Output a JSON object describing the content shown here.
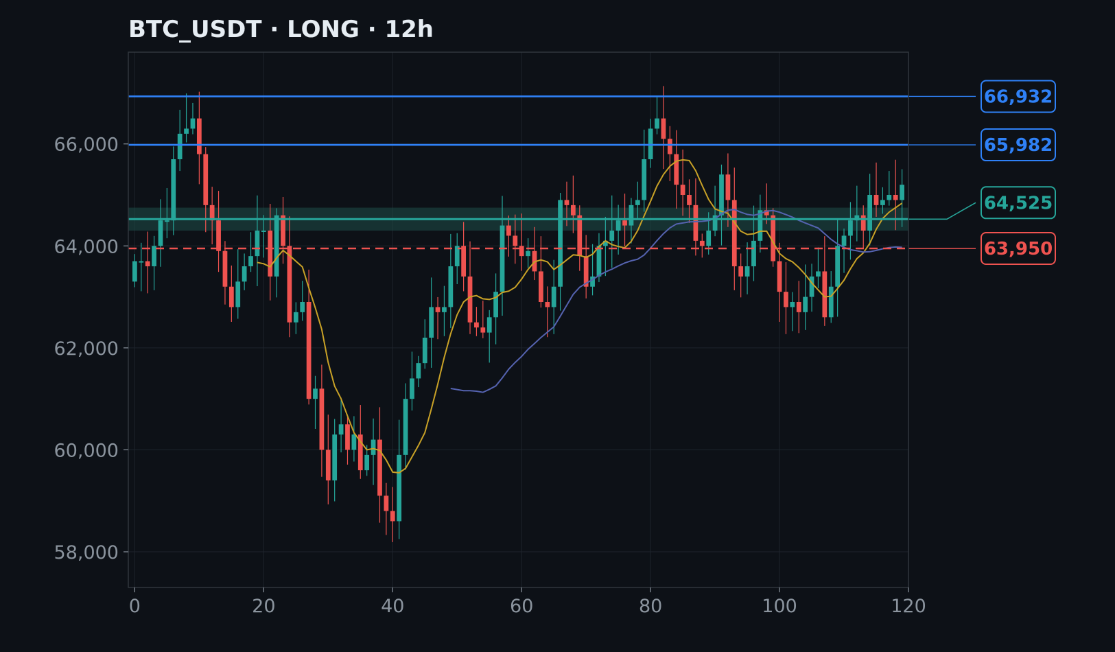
{
  "chart_data": {
    "type": "candlestick",
    "title": "BTC_USDT · LONG · 12h",
    "xlabel": "",
    "ylabel": "",
    "xlim": [
      -1,
      120
    ],
    "ylim": [
      57300,
      67800
    ],
    "x_ticks": [
      0,
      20,
      40,
      60,
      80,
      100,
      120
    ],
    "y_ticks": [
      58000,
      60000,
      62000,
      64000,
      66000
    ],
    "grid": true,
    "colors": {
      "background": "#0d1117",
      "grid": "#1e242c",
      "up": "#26a69a",
      "down": "#ef5350",
      "ma_fast": "#c9a227",
      "ma_slow": "#5563b0",
      "take_profit": "#2f81f7",
      "entry": "#26a69a",
      "stop_loss": "#ef5350",
      "zone_fill": "#1d4a44"
    },
    "entry_zone": [
      64300,
      64750
    ],
    "levels": [
      {
        "label": "66,932",
        "value": 66932,
        "kind": "take_profit",
        "style": "solid"
      },
      {
        "label": "65,982",
        "value": 65982,
        "kind": "take_profit",
        "style": "solid"
      },
      {
        "label": "64,525",
        "value": 64525,
        "kind": "entry",
        "style": "solid"
      },
      {
        "label": "63,950",
        "value": 63950,
        "kind": "stop_loss",
        "style": "dashed"
      }
    ],
    "ohlc_closes": [
      63700,
      63700,
      63600,
      64000,
      64500,
      64500,
      65700,
      66200,
      66300,
      66500,
      65800,
      64800,
      64500,
      63900,
      63200,
      62800,
      63300,
      63600,
      63800,
      64300,
      64300,
      63400,
      64600,
      64000,
      62500,
      62700,
      62900,
      61000,
      61200,
      60000,
      59400,
      60300,
      60500,
      60000,
      60300,
      59600,
      59900,
      60200,
      59100,
      58800,
      58600,
      59900,
      61000,
      61400,
      61700,
      62200,
      62800,
      62700,
      62800,
      63600,
      64000,
      63400,
      62500,
      62400,
      62300,
      62600,
      63100,
      64400,
      64200,
      64000,
      63800,
      63900,
      63500,
      62900,
      62800,
      63200,
      64900,
      64800,
      64600,
      63800,
      63200,
      63400,
      64000,
      64100,
      64300,
      64500,
      64400,
      64800,
      64900,
      65700,
      66300,
      66500,
      66100,
      65800,
      65200,
      65000,
      64800,
      64100,
      64000,
      64300,
      64600,
      65400,
      64900,
      63600,
      63400,
      63600,
      64100,
      64700,
      64600,
      63700,
      63100,
      62800,
      62900,
      62700,
      63000,
      63400,
      63500,
      62600,
      63200,
      64000,
      64200,
      64500,
      64600,
      64300,
      65000,
      64800,
      64900,
      65000,
      64900,
      65200
    ],
    "ma_fast_start": 19,
    "ma_slow_start": 49
  }
}
